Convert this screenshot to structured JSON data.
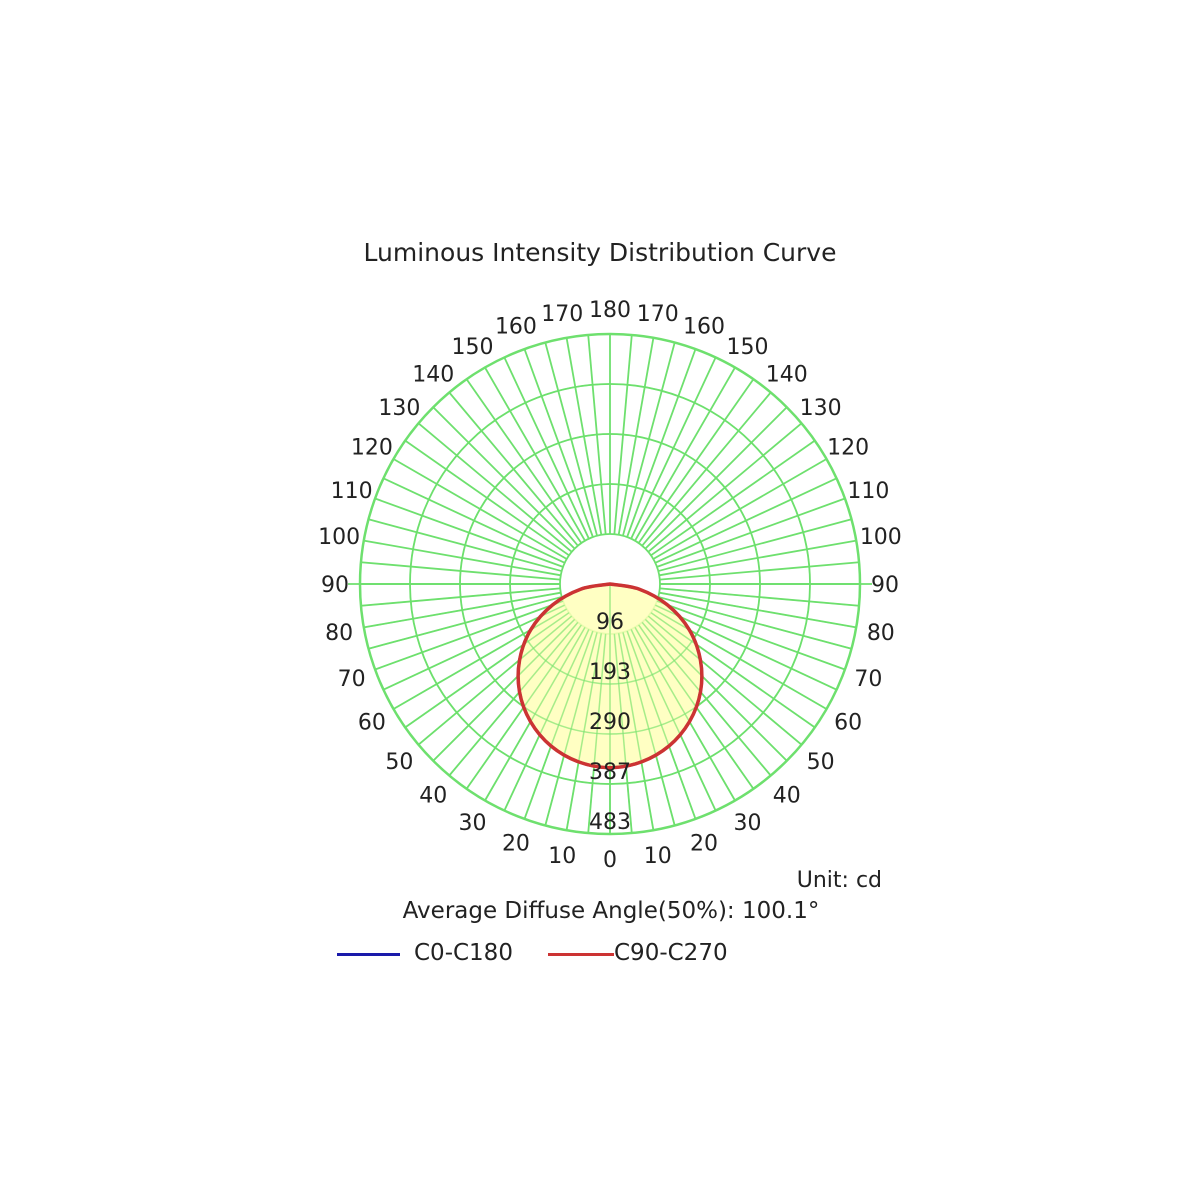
{
  "chart_data": {
    "type": "polar",
    "title": "Luminous Intensity Distribution Curve",
    "unit_label": "Unit: cd",
    "angle_labels": [
      "0",
      "10",
      "20",
      "30",
      "40",
      "50",
      "60",
      "70",
      "80",
      "90",
      "100",
      "110",
      "120",
      "130",
      "140",
      "150",
      "160",
      "170",
      "180"
    ],
    "radial_ticks": [
      "96",
      "193",
      "290",
      "387",
      "483"
    ],
    "radial_max": 483,
    "series": [
      {
        "name": "C0-C180",
        "color": "#1a1aaa",
        "angles": [
          0,
          10,
          20,
          30,
          40,
          50,
          60,
          70,
          80,
          90
        ],
        "values": [
          355,
          349,
          333,
          307,
          272,
          228,
          177,
          118,
          57,
          0
        ]
      },
      {
        "name": "C90-C270",
        "color": "#cc3333",
        "angles": [
          0,
          10,
          20,
          30,
          40,
          50,
          60,
          70,
          80,
          90
        ],
        "values": [
          355,
          349,
          333,
          307,
          272,
          228,
          177,
          118,
          57,
          0
        ]
      }
    ],
    "fill_color": "#ffffb8",
    "grid_color": "#6ee06e",
    "average_diffuse_angle": "Average Diffuse Angle(50%): 100.1°"
  }
}
